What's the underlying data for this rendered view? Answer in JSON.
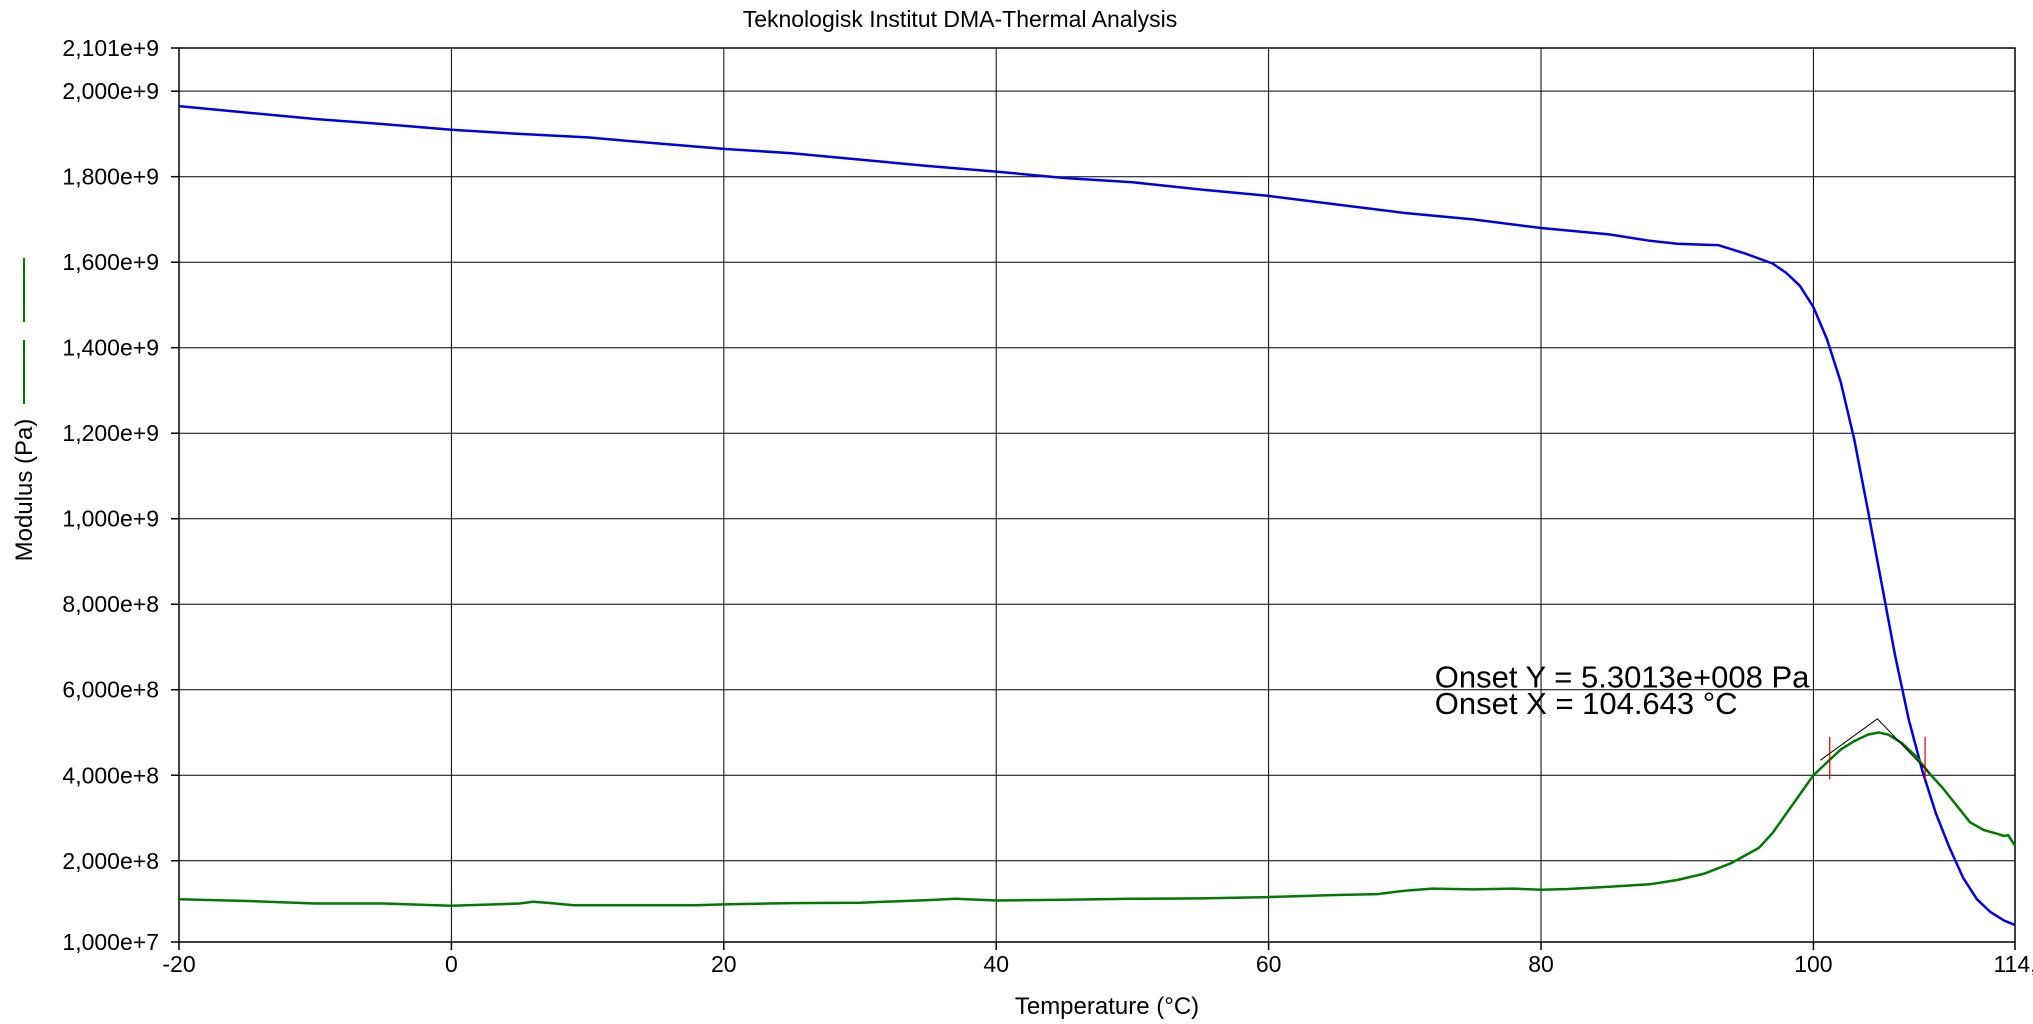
{
  "chart_data": {
    "type": "line",
    "title": "Teknologisk Institut DMA-Thermal Analysis",
    "xlabel": "Temperature (°C)",
    "ylabel": "Modulus (Pa)",
    "xlim": [
      -20,
      114.8
    ],
    "ylim": [
      10000000,
      2101000000
    ],
    "x_ticks": [
      -20,
      0,
      20,
      40,
      60,
      80,
      100,
      114.8
    ],
    "x_tick_labels": [
      "-20",
      "0",
      "20",
      "40",
      "60",
      "80",
      "100",
      "114,"
    ],
    "y_ticks": [
      10000000,
      200000000,
      400000000,
      600000000,
      800000000,
      1000000000,
      1200000000,
      1400000000,
      1600000000,
      1800000000,
      2000000000,
      2101000000
    ],
    "y_tick_labels": [
      "1,000e+7",
      "2,000e+8",
      "4,000e+8",
      "6,000e+8",
      "8,000e+8",
      "1,000e+9",
      "1,200e+9",
      "1,400e+9",
      "1,600e+9",
      "1,800e+9",
      "2,000e+9",
      "2,101e+9"
    ],
    "grid": true,
    "legend_swatch_colors": [
      "#007a00",
      "#007a00"
    ],
    "series": [
      {
        "color": "#0000e6",
        "x": [
          -20,
          -15,
          -10,
          -5,
          0,
          5,
          10,
          15,
          20,
          25,
          30,
          35,
          40,
          45,
          50,
          55,
          60,
          65,
          70,
          75,
          80,
          85,
          88,
          90,
          92,
          93,
          95,
          97,
          98,
          99,
          100,
          101,
          102,
          103,
          104,
          105,
          106,
          107,
          108,
          109,
          110,
          111,
          112,
          113,
          114,
          114.8
        ],
        "y": [
          1965000000,
          1950000000,
          1935000000,
          1923000000,
          1910000000,
          1900000000,
          1892000000,
          1878000000,
          1865000000,
          1855000000,
          1840000000,
          1825000000,
          1812000000,
          1797000000,
          1787000000,
          1770000000,
          1755000000,
          1735000000,
          1715000000,
          1700000000,
          1680000000,
          1665000000,
          1650000000,
          1643000000,
          1641000000,
          1640000000,
          1620000000,
          1597000000,
          1575000000,
          1545000000,
          1495000000,
          1420000000,
          1320000000,
          1185000000,
          1020000000,
          850000000,
          680000000,
          530000000,
          410000000,
          310000000,
          230000000,
          160000000,
          110000000,
          80000000,
          60000000,
          50000000
        ]
      },
      {
        "color": "#007a00",
        "x": [
          -20,
          -15,
          -10,
          -5,
          0,
          5,
          6,
          7,
          9,
          14,
          18,
          20,
          25,
          30,
          35,
          37,
          40,
          45,
          50,
          55,
          60,
          65,
          68,
          70,
          72,
          75,
          78,
          80,
          82,
          85,
          88,
          90,
          92,
          94,
          96,
          97,
          98,
          99,
          100,
          101,
          102,
          103,
          104,
          104.8,
          105.5,
          106.5,
          107.5,
          108.5,
          109.5,
          110.5,
          111.5,
          112.5,
          113.5,
          114,
          114.3,
          114.8
        ],
        "y": [
          110000000,
          106000000,
          100000000,
          100000000,
          95000000,
          100000000,
          104000000,
          102000000,
          96000000,
          96000000,
          96000000,
          98000000,
          101000000,
          102000000,
          108000000,
          111000000,
          107000000,
          109000000,
          111000000,
          112000000,
          115000000,
          120000000,
          122000000,
          130000000,
          135000000,
          133000000,
          135000000,
          132000000,
          134000000,
          139000000,
          145000000,
          155000000,
          170000000,
          195000000,
          230000000,
          265000000,
          310000000,
          355000000,
          400000000,
          430000000,
          460000000,
          480000000,
          495000000,
          500000000,
          495000000,
          475000000,
          445000000,
          405000000,
          370000000,
          330000000,
          290000000,
          272000000,
          263000000,
          258000000,
          260000000,
          235000000
        ]
      }
    ],
    "onset_construction": {
      "color": "#000000",
      "x": [
        100.5,
        104.7,
        108.5
      ],
      "y": [
        435000000,
        532000000,
        405000000
      ]
    },
    "limit_markers": {
      "color": "#e00000",
      "x": [
        101.2,
        108.2
      ],
      "y_range": [
        390000000,
        490000000
      ]
    },
    "annotations": [
      {
        "text": "Onset Y = 5.3013e+008 Pa",
        "x": 72.2,
        "y": 605000000
      },
      {
        "text": "Onset X = 104.643 °C",
        "x": 72.2,
        "y": 543000000
      }
    ]
  }
}
